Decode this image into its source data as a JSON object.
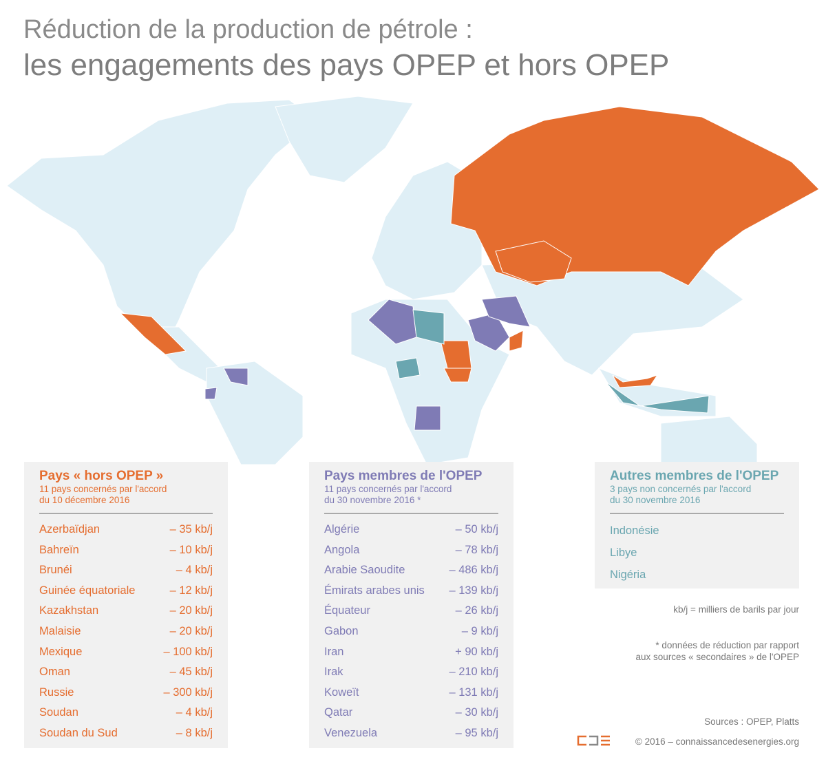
{
  "title": {
    "line1": "Réduction de la production de pétrole :",
    "line2": "les engagements des pays OPEP et hors OPEP"
  },
  "colors": {
    "non_opec": "#e56d2f",
    "opec": "#7f7bb5",
    "other_opec": "#6aa6b0",
    "land": "#dfeff6",
    "panel": "#f1f1f1"
  },
  "panels": [
    {
      "title": "Pays « hors OPEP »",
      "sub1": "11 pays concernés par l'accord",
      "sub2": "du 10 décembre 2016",
      "items": [
        {
          "name": "Azerbaïdjan",
          "value": "– 35 kb/j"
        },
        {
          "name": "Bahreïn",
          "value": "– 10 kb/j"
        },
        {
          "name": "Brunéi",
          "value": "– 4 kb/j"
        },
        {
          "name": "Guinée équatoriale",
          "value": "– 12 kb/j"
        },
        {
          "name": "Kazakhstan",
          "value": "– 20 kb/j"
        },
        {
          "name": "Malaisie",
          "value": "– 20 kb/j"
        },
        {
          "name": "Mexique",
          "value": "– 100 kb/j"
        },
        {
          "name": "Oman",
          "value": "– 45 kb/j"
        },
        {
          "name": "Russie",
          "value": "– 300 kb/j"
        },
        {
          "name": "Soudan",
          "value": "– 4 kb/j"
        },
        {
          "name": "Soudan du Sud",
          "value": "– 8 kb/j"
        }
      ]
    },
    {
      "title": "Pays membres de l'OPEP",
      "sub1": "11 pays concernés par l'accord",
      "sub2": "du 30 novembre 2016 *",
      "items": [
        {
          "name": "Algérie",
          "value": "– 50 kb/j"
        },
        {
          "name": "Angola",
          "value": "– 78 kb/j"
        },
        {
          "name": "Arabie Saoudite",
          "value": "– 486 kb/j"
        },
        {
          "name": "Émirats arabes unis",
          "value": "– 139 kb/j"
        },
        {
          "name": "Équateur",
          "value": "– 26 kb/j"
        },
        {
          "name": "Gabon",
          "value": "– 9 kb/j"
        },
        {
          "name": "Iran",
          "value": "+ 90 kb/j"
        },
        {
          "name": "Irak",
          "value": "– 210 kb/j"
        },
        {
          "name": "Koweït",
          "value": "– 131 kb/j"
        },
        {
          "name": "Qatar",
          "value": "– 30 kb/j"
        },
        {
          "name": "Venezuela",
          "value": "– 95 kb/j"
        }
      ]
    },
    {
      "title": "Autres membres de l'OPEP",
      "sub1": "3 pays non concernés par l'accord",
      "sub2": "du 30 novembre 2016",
      "items": [
        {
          "name": "Indonésie"
        },
        {
          "name": "Libye"
        },
        {
          "name": "Nigéria"
        }
      ]
    }
  ],
  "notes": {
    "unit": "kb/j = milliers de barils par jour",
    "footnote1": "* données de réduction par rapport",
    "footnote2": "aux sources « secondaires » de l'OPEP",
    "sources": "Sources : OPEP, Platts",
    "copyright": "© 2016 – connaissancedesenergies.org"
  }
}
